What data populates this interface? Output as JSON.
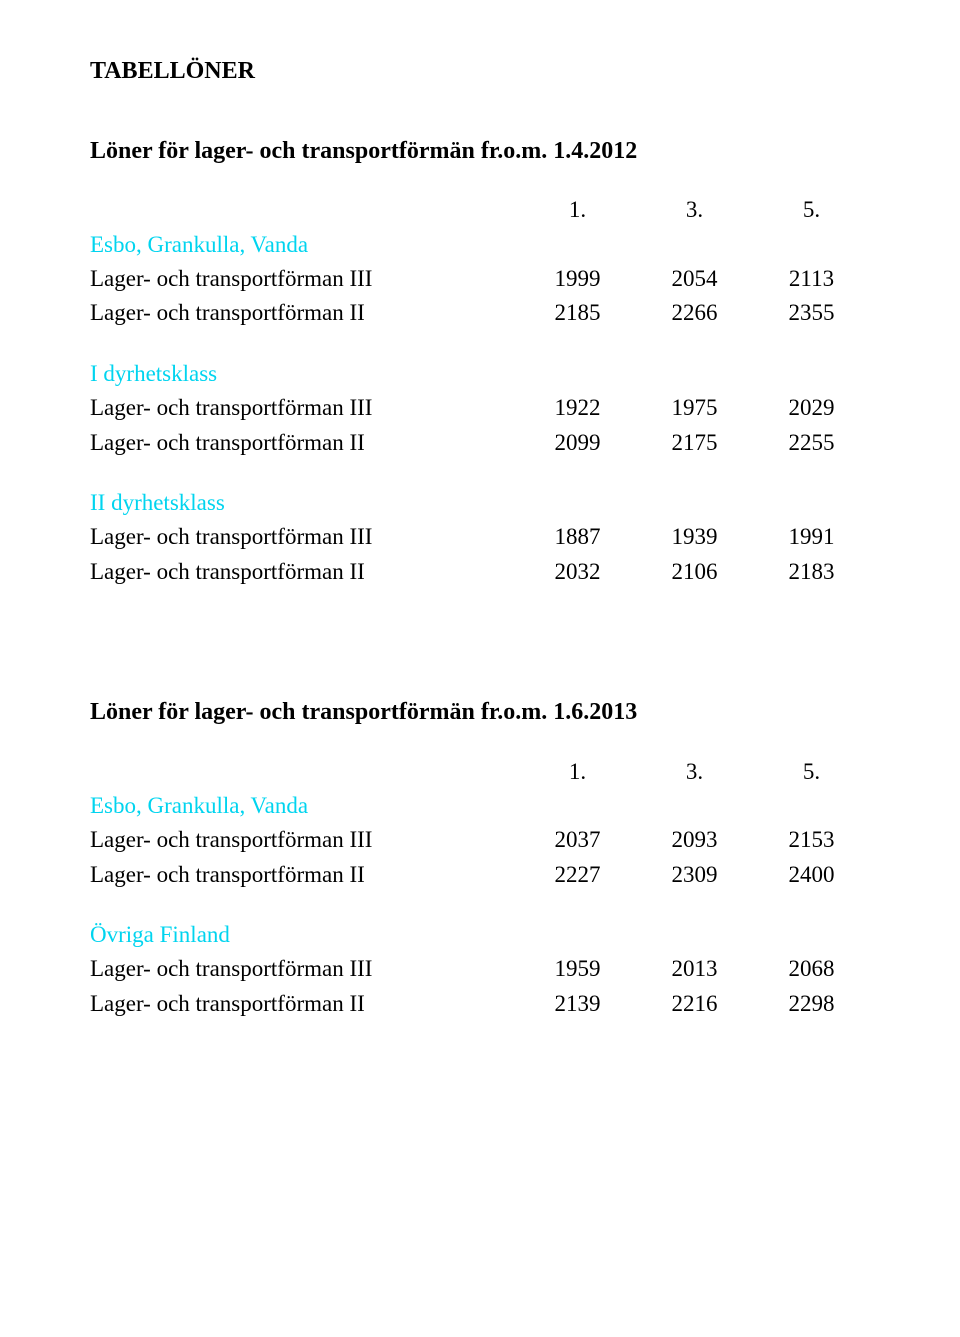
{
  "colors": {
    "text": "#000000",
    "cyan": "#00d4ef",
    "background": "#ffffff"
  },
  "mainTitle": "TABELLÖNER",
  "columnHeaders": {
    "c1": "1.",
    "c2": "3.",
    "c3": "5."
  },
  "section1": {
    "title": "Löner för lager- och transportförmän fr.o.m. 1.4.2012",
    "groups": [
      {
        "header": "Esbo, Grankulla, Vanda",
        "rows": [
          {
            "label": "Lager- och transportförman III",
            "v": [
              "1999",
              "2054",
              "2113"
            ]
          },
          {
            "label": "Lager- och transportförman II",
            "v": [
              "2185",
              "2266",
              "2355"
            ]
          }
        ]
      },
      {
        "header": "I dyrhetsklass",
        "rows": [
          {
            "label": "Lager- och transportförman III",
            "v": [
              "1922",
              "1975",
              "2029"
            ]
          },
          {
            "label": "Lager- och transportförman II",
            "v": [
              "2099",
              "2175",
              "2255"
            ]
          }
        ]
      },
      {
        "header": "II dyrhetsklass",
        "rows": [
          {
            "label": "Lager- och transportförman III",
            "v": [
              "1887",
              "1939",
              "1991"
            ]
          },
          {
            "label": "Lager- och transportförman II",
            "v": [
              "2032",
              "2106",
              "2183"
            ]
          }
        ]
      }
    ]
  },
  "section2": {
    "title": "Löner för lager- och transportförmän fr.o.m. 1.6.2013",
    "groups": [
      {
        "header": "Esbo, Grankulla, Vanda",
        "rows": [
          {
            "label": "Lager- och transportförman III",
            "v": [
              "2037",
              "2093",
              "2153"
            ]
          },
          {
            "label": "Lager- och transportförman II",
            "v": [
              "2227",
              "2309",
              "2400"
            ]
          }
        ]
      },
      {
        "header": "Övriga Finland",
        "rows": [
          {
            "label": "Lager- och transportförman III",
            "v": [
              "1959",
              "2013",
              "2068"
            ]
          },
          {
            "label": "Lager- och transportförman II",
            "v": [
              "2139",
              "2216",
              "2298"
            ]
          }
        ]
      }
    ]
  }
}
